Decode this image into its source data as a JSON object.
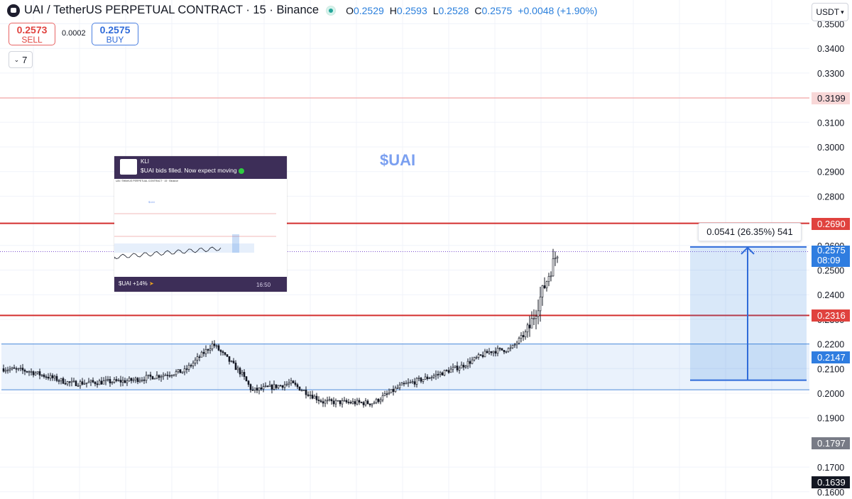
{
  "header": {
    "symbol_title": "UAI / TetherUS PERPETUAL CONTRACT · 15 · Binance",
    "ohlc": [
      {
        "k": "O",
        "v": "0.2529"
      },
      {
        "k": "H",
        "v": "0.2593"
      },
      {
        "k": "L",
        "v": "0.2528"
      },
      {
        "k": "C",
        "v": "0.2575"
      }
    ],
    "change": "+0.0048 (+1.90%)"
  },
  "trade": {
    "sell_price": "0.2573",
    "sell_label": "SELL",
    "spread": "0.0002",
    "buy_price": "0.2575",
    "buy_label": "BUY"
  },
  "indicators_count": "7",
  "currency": "USDT",
  "watermark": "$UAI",
  "price_axis": {
    "ticks": [
      "0.3500",
      "0.3400",
      "0.3300",
      "0.3100",
      "0.3000",
      "0.2900",
      "0.2800",
      "0.2600",
      "0.2500",
      "0.2400",
      "0.2300",
      "0.2200",
      "0.2100",
      "0.2000",
      "0.1900",
      "0.1700",
      "0.1600"
    ],
    "badges": [
      {
        "label": "0.3199",
        "color": "#f8d7d7",
        "text_color": "#131722"
      },
      {
        "label": "0.2690",
        "color": "#e0423e",
        "text_color": "#ffffff"
      },
      {
        "label": "0.2316",
        "color": "#e0423e",
        "text_color": "#ffffff"
      },
      {
        "label": "0.2147",
        "color": "#2f7de0",
        "text_color": "#ffffff"
      },
      {
        "label": "0.1797",
        "color": "#787b86",
        "text_color": "#ffffff"
      },
      {
        "label": "0.1639",
        "color": "#131722",
        "text_color": "#ffffff"
      }
    ],
    "current_price": "0.2575",
    "countdown": "08:09"
  },
  "levels": {
    "light_red": 0.3199,
    "resistance_1": 0.269,
    "resistance_2": 0.2316,
    "zone_top": 0.22,
    "zone_bottom": 0.2014,
    "current": 0.2575
  },
  "measure": {
    "text": "0.0541 (26.35%) 541",
    "from": 0.2053,
    "to": 0.2594
  },
  "tweet": {
    "name": "KLI",
    "message": "$UAI bids filled. Now expect moving",
    "tag": "$UAI +14%",
    "time": "16:50",
    "mini_title": "UAI / TetherUS PERPETUAL CONTRACT · 15 · Binance",
    "mini_watermark": "$UAI"
  },
  "colors": {
    "up": "#26a69a",
    "down": "#131722",
    "accent": "#2f7de0",
    "resistance": "#d32f2f",
    "zone": "rgba(47,125,224,0.10)"
  }
}
